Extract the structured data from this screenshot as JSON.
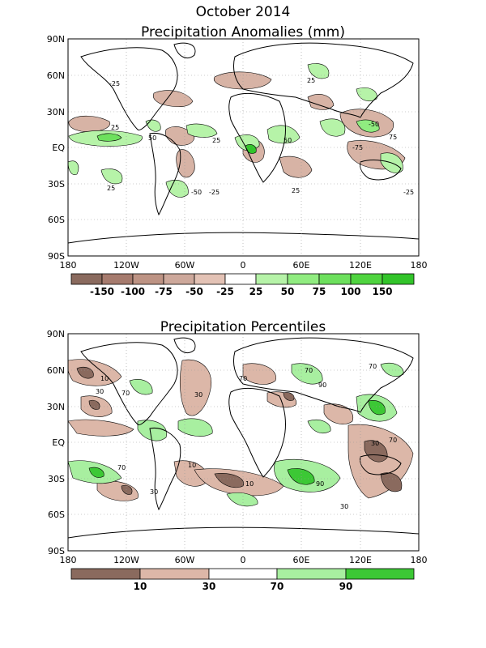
{
  "page_title": "October 2014",
  "panels": [
    {
      "title": "Precipitation Anomalies (mm)",
      "legend_labels": [
        "-150",
        "-100",
        "-75",
        "-50",
        "-25",
        "25",
        "50",
        "75",
        "100",
        "150"
      ],
      "legend_colors": [
        "#8a6a5e",
        "#a67b6e",
        "#bd9384",
        "#cda89b",
        "#e3c2b5",
        "#ffffff",
        "#b6f3a8",
        "#90ec80",
        "#6de05d",
        "#4fd43f",
        "#32c42a"
      ],
      "contour_labels": [
        "-25",
        "25",
        "50",
        "-50",
        "75",
        "-75"
      ]
    },
    {
      "title": "Precipitation Percentiles",
      "legend_labels": [
        "10",
        "30",
        "70",
        "90"
      ],
      "legend_colors": [
        "#8a6a5e",
        "#dcb7a8",
        "#ffffff",
        "#a8efa0",
        "#3cc835"
      ],
      "contour_labels": [
        "10",
        "30",
        "70",
        "90"
      ]
    }
  ],
  "axes": {
    "x_ticks": [
      "180",
      "120W",
      "60W",
      "0",
      "60E",
      "120E",
      "180"
    ],
    "y_ticks": [
      "90N",
      "60N",
      "30N",
      "EQ",
      "30S",
      "60S",
      "90S"
    ]
  }
}
